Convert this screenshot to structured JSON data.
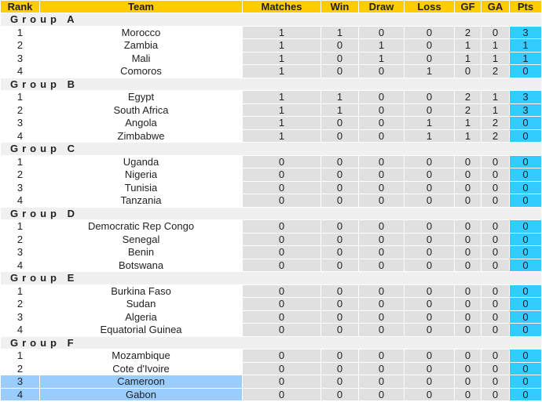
{
  "headers": [
    "Rank",
    "Team",
    "Matches",
    "Win",
    "Draw",
    "Loss",
    "GF",
    "GA",
    "Pts"
  ],
  "colors": {
    "header": "#ffcc00",
    "points": "#33ccff",
    "highlight": "#99ccff",
    "cell": "#e0e0e0"
  },
  "groups": [
    {
      "name": "Group A",
      "rows": [
        {
          "rank": "1",
          "team": "Morocco",
          "m": "1",
          "w": "1",
          "d": "0",
          "l": "0",
          "gf": "2",
          "ga": "0",
          "pts": "3"
        },
        {
          "rank": "2",
          "team": "Zambia",
          "m": "1",
          "w": "0",
          "d": "1",
          "l": "0",
          "gf": "1",
          "ga": "1",
          "pts": "1"
        },
        {
          "rank": "3",
          "team": "Mali",
          "m": "1",
          "w": "0",
          "d": "1",
          "l": "0",
          "gf": "1",
          "ga": "1",
          "pts": "1"
        },
        {
          "rank": "4",
          "team": "Comoros",
          "m": "1",
          "w": "0",
          "d": "0",
          "l": "1",
          "gf": "0",
          "ga": "2",
          "pts": "0"
        }
      ]
    },
    {
      "name": "Group B",
      "rows": [
        {
          "rank": "1",
          "team": "Egypt",
          "m": "1",
          "w": "1",
          "d": "0",
          "l": "0",
          "gf": "2",
          "ga": "1",
          "pts": "3"
        },
        {
          "rank": "2",
          "team": "South Africa",
          "m": "1",
          "w": "1",
          "d": "0",
          "l": "0",
          "gf": "2",
          "ga": "1",
          "pts": "3"
        },
        {
          "rank": "3",
          "team": "Angola",
          "m": "1",
          "w": "0",
          "d": "0",
          "l": "1",
          "gf": "1",
          "ga": "2",
          "pts": "0"
        },
        {
          "rank": "4",
          "team": "Zimbabwe",
          "m": "1",
          "w": "0",
          "d": "0",
          "l": "1",
          "gf": "1",
          "ga": "2",
          "pts": "0"
        }
      ]
    },
    {
      "name": "Group C",
      "rows": [
        {
          "rank": "1",
          "team": "Uganda",
          "m": "0",
          "w": "0",
          "d": "0",
          "l": "0",
          "gf": "0",
          "ga": "0",
          "pts": "0"
        },
        {
          "rank": "2",
          "team": "Nigeria",
          "m": "0",
          "w": "0",
          "d": "0",
          "l": "0",
          "gf": "0",
          "ga": "0",
          "pts": "0"
        },
        {
          "rank": "3",
          "team": "Tunisia",
          "m": "0",
          "w": "0",
          "d": "0",
          "l": "0",
          "gf": "0",
          "ga": "0",
          "pts": "0"
        },
        {
          "rank": "4",
          "team": "Tanzania",
          "m": "0",
          "w": "0",
          "d": "0",
          "l": "0",
          "gf": "0",
          "ga": "0",
          "pts": "0"
        }
      ]
    },
    {
      "name": "Group D",
      "rows": [
        {
          "rank": "1",
          "team": "Democratic Rep Congo",
          "m": "0",
          "w": "0",
          "d": "0",
          "l": "0",
          "gf": "0",
          "ga": "0",
          "pts": "0"
        },
        {
          "rank": "2",
          "team": "Senegal",
          "m": "0",
          "w": "0",
          "d": "0",
          "l": "0",
          "gf": "0",
          "ga": "0",
          "pts": "0"
        },
        {
          "rank": "3",
          "team": "Benin",
          "m": "0",
          "w": "0",
          "d": "0",
          "l": "0",
          "gf": "0",
          "ga": "0",
          "pts": "0"
        },
        {
          "rank": "4",
          "team": "Botswana",
          "m": "0",
          "w": "0",
          "d": "0",
          "l": "0",
          "gf": "0",
          "ga": "0",
          "pts": "0"
        }
      ]
    },
    {
      "name": "Group E",
      "rows": [
        {
          "rank": "1",
          "team": "Burkina Faso",
          "m": "0",
          "w": "0",
          "d": "0",
          "l": "0",
          "gf": "0",
          "ga": "0",
          "pts": "0"
        },
        {
          "rank": "2",
          "team": "Sudan",
          "m": "0",
          "w": "0",
          "d": "0",
          "l": "0",
          "gf": "0",
          "ga": "0",
          "pts": "0"
        },
        {
          "rank": "3",
          "team": "Algeria",
          "m": "0",
          "w": "0",
          "d": "0",
          "l": "0",
          "gf": "0",
          "ga": "0",
          "pts": "0"
        },
        {
          "rank": "4",
          "team": "Equatorial Guinea",
          "m": "0",
          "w": "0",
          "d": "0",
          "l": "0",
          "gf": "0",
          "ga": "0",
          "pts": "0"
        }
      ]
    },
    {
      "name": "Group F",
      "rows": [
        {
          "rank": "1",
          "team": "Mozambique",
          "m": "0",
          "w": "0",
          "d": "0",
          "l": "0",
          "gf": "0",
          "ga": "0",
          "pts": "0"
        },
        {
          "rank": "2",
          "team": "Cote d'Ivoire",
          "m": "0",
          "w": "0",
          "d": "0",
          "l": "0",
          "gf": "0",
          "ga": "0",
          "pts": "0"
        },
        {
          "rank": "3",
          "team": "Cameroon",
          "m": "0",
          "w": "0",
          "d": "0",
          "l": "0",
          "gf": "0",
          "ga": "0",
          "pts": "0",
          "highlight": true
        },
        {
          "rank": "4",
          "team": "Gabon",
          "m": "0",
          "w": "0",
          "d": "0",
          "l": "0",
          "gf": "0",
          "ga": "0",
          "pts": "0",
          "highlight": true
        }
      ]
    }
  ]
}
